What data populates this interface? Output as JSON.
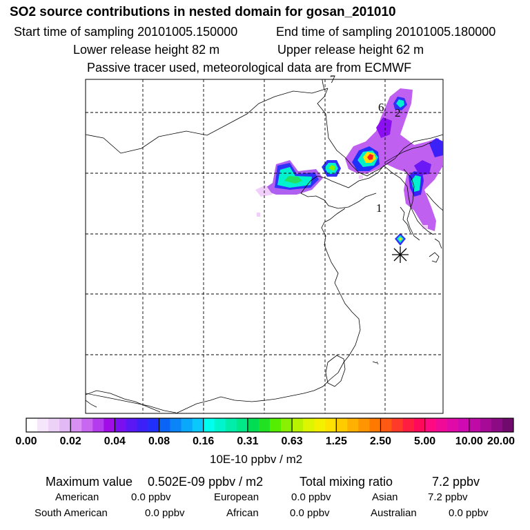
{
  "chart_data": {
    "type": "heatmap",
    "title": "SO2 source contributions in nested domain for gosan_201010",
    "start_label": "Start time of sampling 20101005.150000",
    "end_label": "End time of sampling 20101005.180000",
    "lower_label": "Lower release height   82 m",
    "upper_label": "Upper release height   62 m",
    "tracer_note": "Passive tracer used, meteorological data are from ECMWF",
    "colorbar": {
      "ticks": [
        "0.00",
        "0.02",
        "0.04",
        "0.08",
        "0.16",
        "0.31",
        "0.63",
        "1.25",
        "2.50",
        "5.00",
        "10.00",
        "20.00"
      ],
      "colors": [
        "#ffffff",
        "#f5e6fb",
        "#edd2f8",
        "#e2b8f5",
        "#d890f2",
        "#c867f0",
        "#b43cee",
        "#a00de6",
        "#7a10f0",
        "#5a18f5",
        "#3c20f8",
        "#2030fa",
        "#0a64f5",
        "#0a85f8",
        "#0aa8fa",
        "#0ac8fb",
        "#00ffee",
        "#00f5cc",
        "#00eeaa",
        "#00e888",
        "#00dd55",
        "#22e022",
        "#55ee00",
        "#88f000",
        "#b8f200",
        "#ddf500",
        "#f5f000",
        "#ffe200",
        "#ffcc00",
        "#ffb000",
        "#ff9500",
        "#ff7800",
        "#ff5a14",
        "#ff3a28",
        "#ff1e40",
        "#ff0a5a",
        "#ff0a80",
        "#f00a98",
        "#e00aa8",
        "#d00ab2",
        "#c00aa8",
        "#a80a98",
        "#8c0a84",
        "#700a6c"
      ],
      "unit_label": "10E-10 ppbv / m2"
    },
    "hotspots_note": "map features drawn as decoration",
    "markers": [
      "1",
      "2",
      "6",
      "7"
    ],
    "summary": {
      "max_label": "Maximum value",
      "max_value": "0.502E-09 ppbv / m2",
      "total_label": "Total mixing ratio",
      "total_value": "7.2 ppbv",
      "regions": [
        {
          "name": "American",
          "value": "0.0 ppbv"
        },
        {
          "name": "European",
          "value": "0.0 ppbv"
        },
        {
          "name": "Asian",
          "value": "7.2 ppbv"
        },
        {
          "name": "South American",
          "value": "0.0 ppbv"
        },
        {
          "name": "African",
          "value": "0.0 ppbv"
        },
        {
          "name": "Australian",
          "value": "0.0 ppbv"
        }
      ]
    }
  }
}
